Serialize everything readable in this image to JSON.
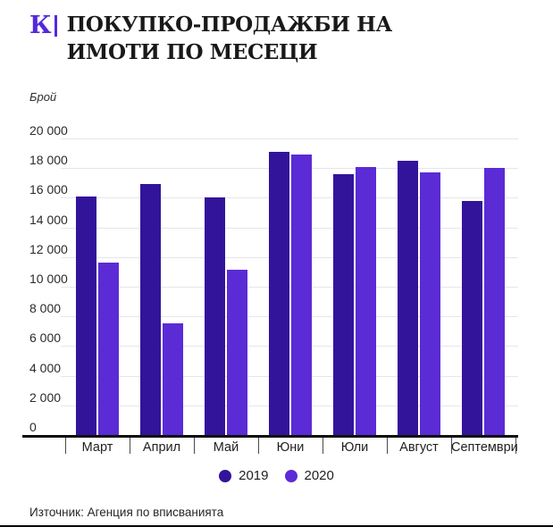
{
  "header": {
    "logo_letter": "К",
    "logo_color": "#5528DB",
    "title": "ПОКУПКО-ПРОДАЖБИ НА ИМОТИ ПО МЕСЕЦИ"
  },
  "chart_data": {
    "type": "bar",
    "title": "ПОКУПКО-ПРОДАЖБИ НА ИМОТИ ПО МЕСЕЦИ",
    "ylabel": "Брой",
    "xlabel": "",
    "categories": [
      "Март",
      "Април",
      "Май",
      "Юни",
      "Юли",
      "Август",
      "Септември"
    ],
    "series": [
      {
        "name": "2019",
        "color": "#32149B",
        "values": [
          16100,
          16900,
          16000,
          19100,
          17600,
          18500,
          15800
        ]
      },
      {
        "name": "2020",
        "color": "#5B2BD5",
        "values": [
          11650,
          7550,
          11150,
          18900,
          18100,
          17700,
          18000
        ]
      }
    ],
    "ylim": [
      0,
      20000
    ],
    "ytick_step": 2000,
    "ytick_labels": [
      "0",
      "2 000",
      "4 000",
      "6 000",
      "8 000",
      "10 000",
      "12 000",
      "14 000",
      "16 000",
      "18 000",
      "20 000"
    ],
    "grid": true,
    "gridline_color": "#E7E5EA",
    "legend_position": "bottom"
  },
  "footer": {
    "source": "Източник: Агенция по вписванията"
  }
}
